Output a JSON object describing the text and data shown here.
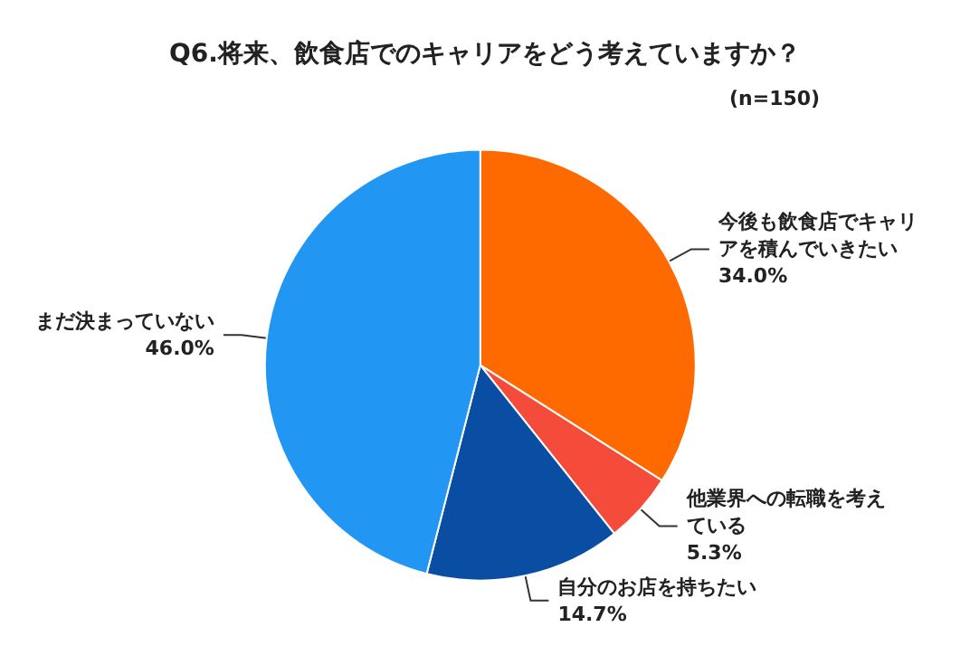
{
  "chart_data": {
    "type": "pie",
    "title": "Q6.将来、飲食店でのキャリアをどう考えていますか？",
    "subtitle": "(n=150)",
    "categories": [
      "今後も飲食店でキャリアを積んでいきたい",
      "他業界への転職を考えている",
      "自分のお店を持ちたい",
      "まだ決まっていない"
    ],
    "values": [
      34.0,
      5.3,
      14.7,
      46.0
    ],
    "colors": [
      "#ff6a00",
      "#f44b3a",
      "#0a4ea3",
      "#2196f3"
    ],
    "value_labels": [
      "34.0%",
      "5.3%",
      "14.7%",
      "46.0%"
    ],
    "legend": false
  }
}
